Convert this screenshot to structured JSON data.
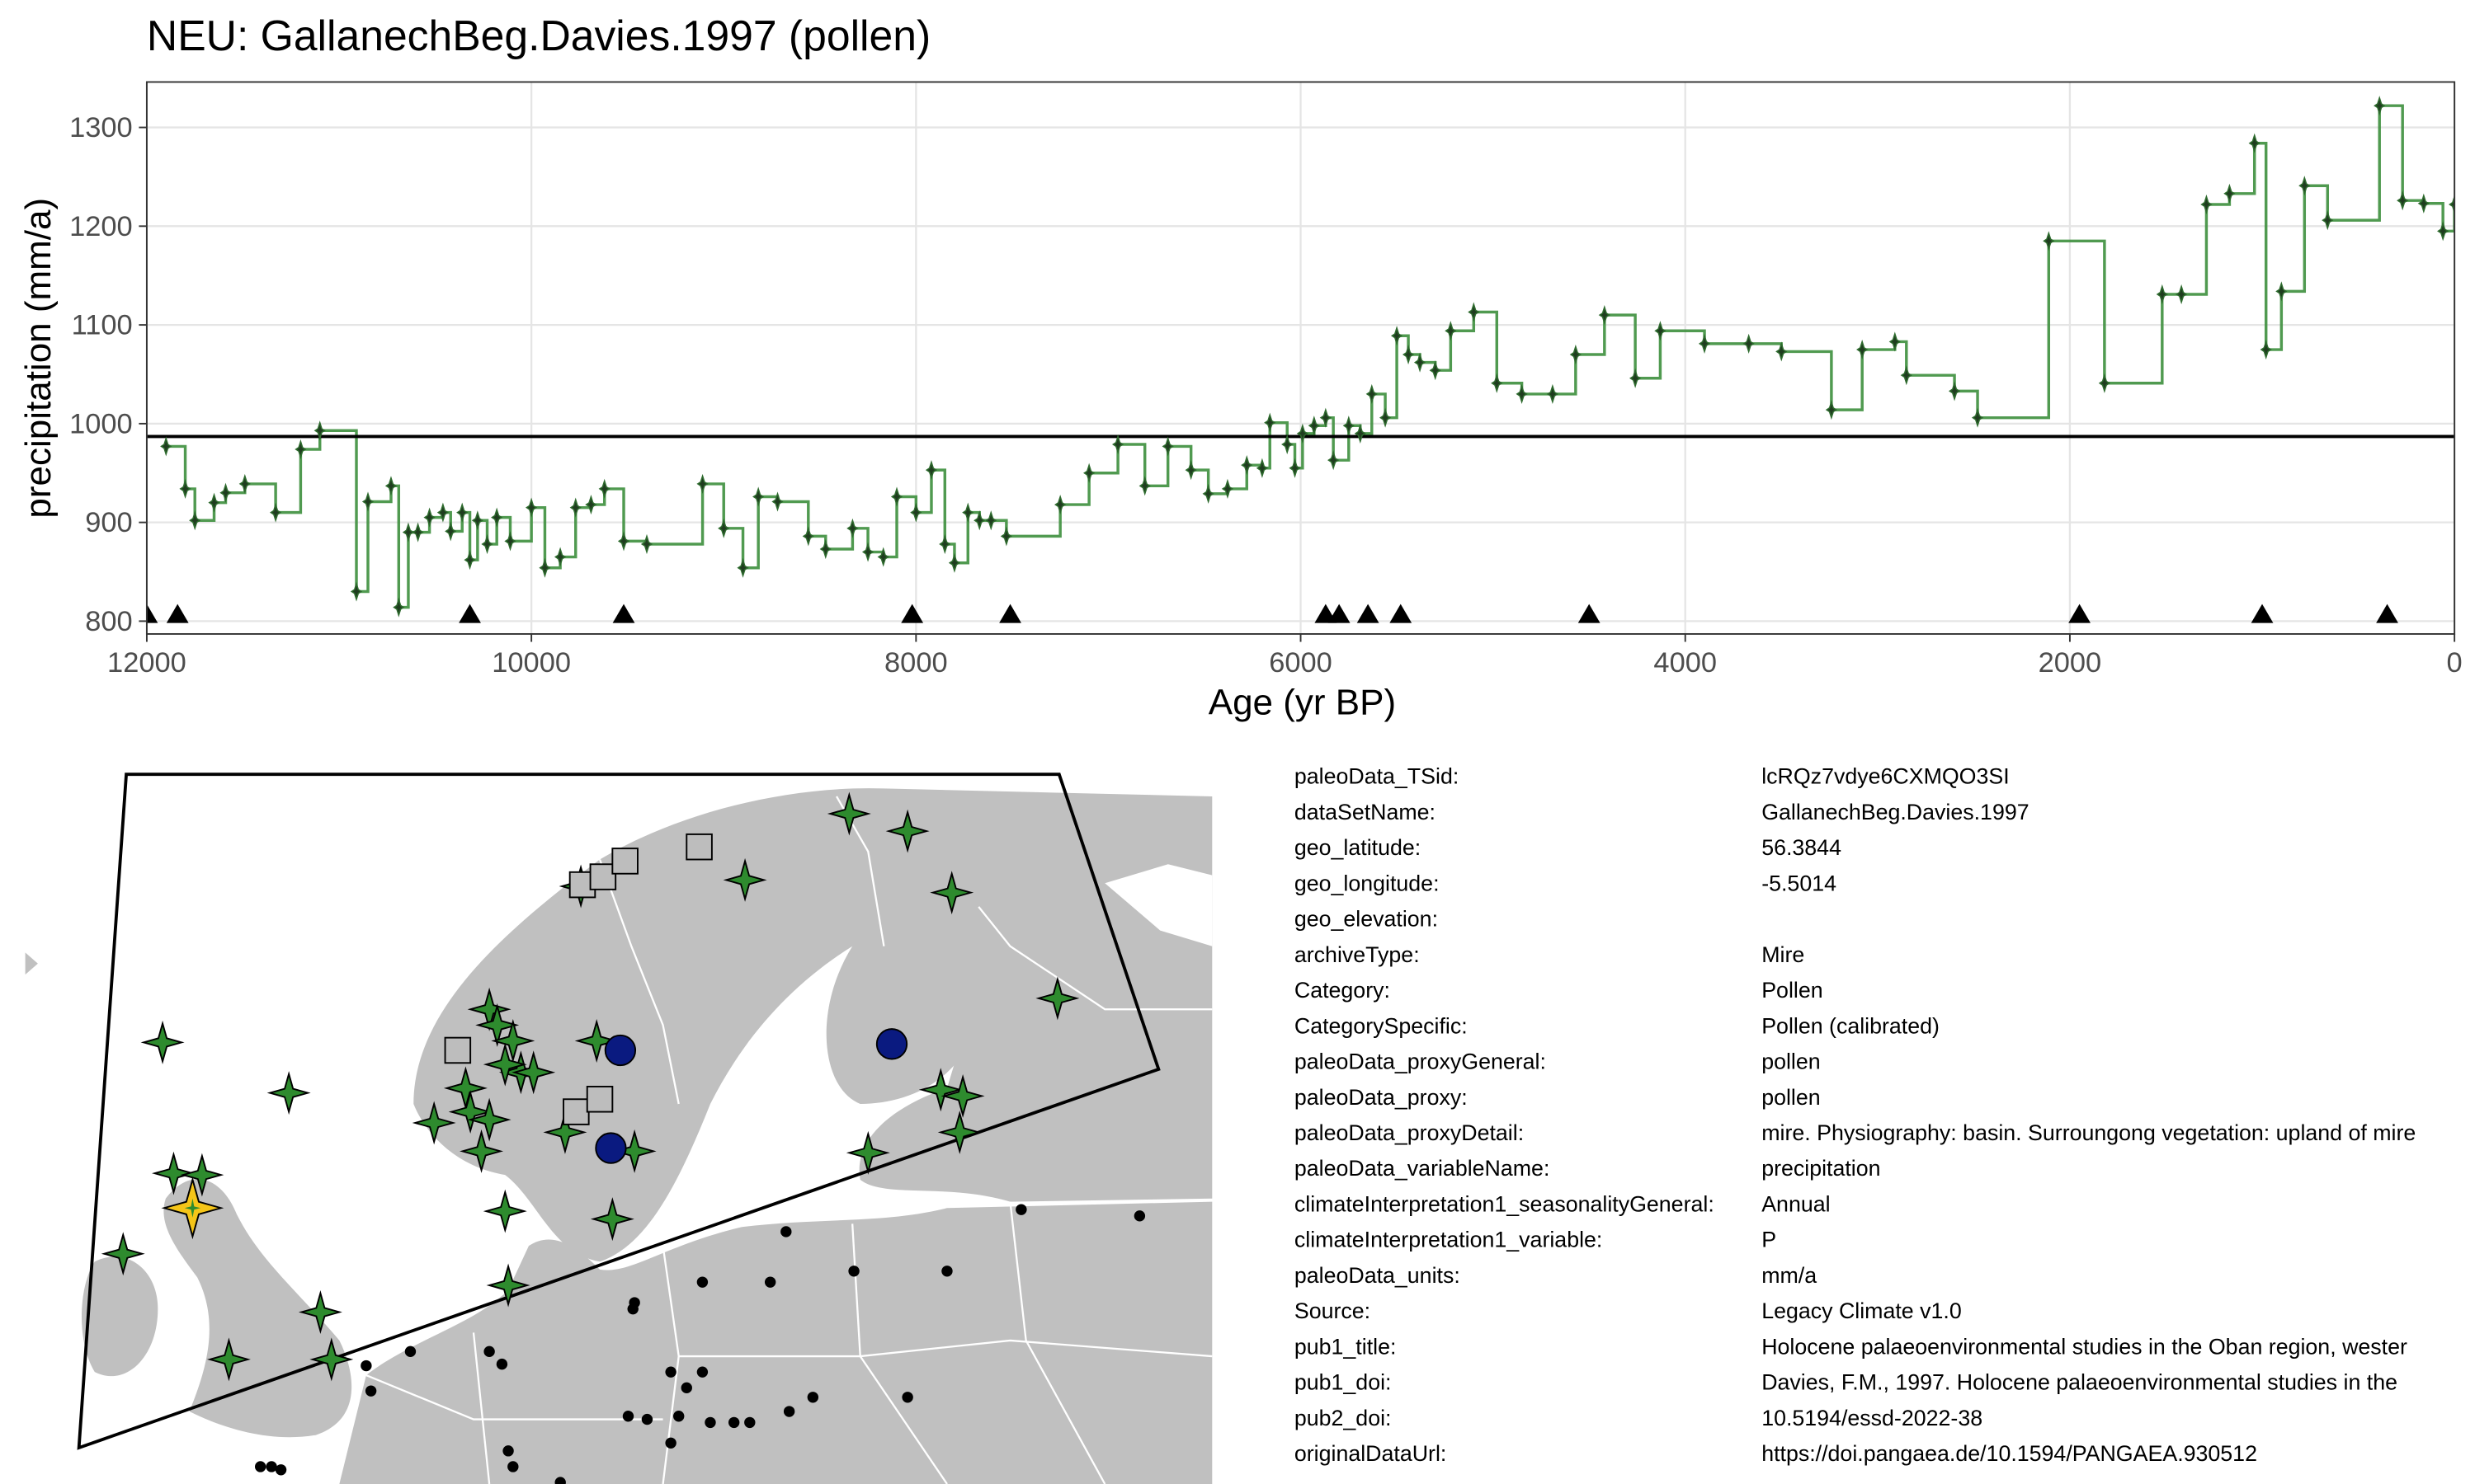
{
  "chart_data": {
    "type": "step",
    "title": "NEU: GallanechBeg.Davies.1997 (pollen)",
    "xlabel": "Age (yr BP)",
    "ylabel": "precipitation (mm/a)",
    "color": "#3d8f3d",
    "xlim": [
      12000,
      0
    ],
    "ylim": [
      787,
      1346
    ],
    "xticks": [
      12000,
      10000,
      8000,
      6000,
      4000,
      2000,
      0
    ],
    "yticks": [
      800,
      900,
      1000,
      1100,
      1200,
      1300
    ],
    "grid": true,
    "hline": 987,
    "chron_ages": [
      12000,
      11840,
      10320,
      9520,
      8020,
      7510,
      5870,
      5800,
      5650,
      5480,
      4500,
      1950,
      1000,
      350
    ],
    "x": [
      11900,
      11800,
      11750,
      11650,
      11590,
      11490,
      11330,
      11200,
      11100,
      10910,
      10850,
      10730,
      10690,
      10640,
      10590,
      10530,
      10460,
      10420,
      10360,
      10320,
      10280,
      10230,
      10180,
      10110,
      10000,
      9930,
      9850,
      9770,
      9690,
      9620,
      9520,
      9400,
      9110,
      9000,
      8900,
      8820,
      8720,
      8560,
      8470,
      8330,
      8250,
      8170,
      8100,
      8000,
      7920,
      7850,
      7800,
      7730,
      7670,
      7610,
      7530,
      7250,
      7100,
      6950,
      6810,
      6690,
      6570,
      6480,
      6380,
      6280,
      6200,
      6160,
      6070,
      6030,
      5990,
      5930,
      5870,
      5830,
      5750,
      5690,
      5630,
      5560,
      5500,
      5440,
      5380,
      5300,
      5220,
      5100,
      4980,
      4850,
      4690,
      4570,
      4420,
      4260,
      4130,
      3900,
      3670,
      3500,
      3240,
      3080,
      2910,
      2850,
      2600,
      2480,
      2110,
      1820,
      1520,
      1420,
      1290,
      1170,
      1040,
      980,
      900,
      780,
      660,
      390,
      270,
      160,
      60,
      0
    ],
    "values": [
      977,
      934,
      902,
      920,
      930,
      939,
      910,
      974,
      993,
      830,
      921,
      937,
      814,
      890,
      890,
      905,
      910,
      891,
      910,
      862,
      902,
      878,
      905,
      881,
      915,
      854,
      865,
      915,
      918,
      934,
      881,
      878,
      939,
      894,
      854,
      926,
      921,
      886,
      873,
      894,
      870,
      865,
      926,
      910,
      953,
      878,
      859,
      910,
      902,
      902,
      886,
      918,
      950,
      979,
      937,
      977,
      953,
      929,
      934,
      958,
      955,
      1001,
      979,
      955,
      990,
      998,
      1006,
      963,
      998,
      990,
      1030,
      1006,
      1089,
      1070,
      1062,
      1054,
      1094,
      1113,
      1041,
      1030,
      1030,
      1070,
      1110,
      1046,
      1094,
      1081,
      1081,
      1073,
      1014,
      1075,
      1083,
      1049,
      1033,
      1006,
      1185,
      1041,
      1131,
      1131,
      1222,
      1233,
      1284,
      1075,
      1134,
      1241,
      1206,
      1322,
      1226,
      1223,
      1195,
      1222
    ]
  },
  "metadata": {
    "rows": [
      {
        "key": "paleoData_TSid:",
        "value": "lcRQz7vdye6CXMQO3SI"
      },
      {
        "key": "dataSetName:",
        "value": "GallanechBeg.Davies.1997"
      },
      {
        "key": "geo_latitude:",
        "value": "56.3844"
      },
      {
        "key": "geo_longitude:",
        "value": "-5.5014"
      },
      {
        "key": "geo_elevation:"
      },
      {
        "key": "archiveType:",
        "value": "Mire"
      },
      {
        "key": "Category:",
        "value": "Pollen"
      },
      {
        "key": "CategorySpecific:",
        "value": "Pollen (calibrated)"
      },
      {
        "key": "paleoData_proxyGeneral:",
        "value": "pollen"
      },
      {
        "key": "paleoData_proxy:",
        "value": "pollen"
      },
      {
        "key": "paleoData_proxyDetail:",
        "value": "mire. Physiography: basin. Surroungong vegetation: upland of mire"
      },
      {
        "key": "paleoData_variableName:",
        "value": "precipitation"
      },
      {
        "key": "climateInterpretation1_seasonalityGeneral:",
        "value": "Annual"
      },
      {
        "key": "climateInterpretation1_variable:",
        "value": "P"
      },
      {
        "key": "paleoData_units:",
        "value": "mm/a"
      },
      {
        "key": "Source:",
        "value": "Legacy Climate v1.0"
      },
      {
        "key": "pub1_title:",
        "value": "Holocene palaeoenvironmental studies in the Oban region, wester"
      },
      {
        "key": "pub1_doi:",
        "value": "Davies, F.M., 1997. Holocene palaeoenvironmental studies in the"
      },
      {
        "key": "pub2_doi:",
        "value": "10.5194/essd-2022-38"
      },
      {
        "key": "originalDataUrl:",
        "value": "https://doi.pangaea.de/10.1594/PANGAEA.930512"
      }
    ]
  }
}
